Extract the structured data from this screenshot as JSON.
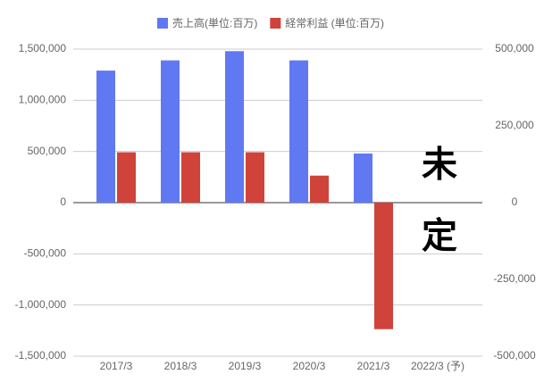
{
  "chart_data": {
    "type": "bar",
    "legend_position": "top",
    "categories": [
      "2017/3",
      "2018/3",
      "2019/3",
      "2020/3",
      "2021/3",
      "2022/3 (予)"
    ],
    "series": [
      {
        "name": "売上高(単位:百万)",
        "color": "#6079f2",
        "values": [
          1290000,
          1390000,
          1480000,
          1390000,
          480000,
          null
        ]
      },
      {
        "name": "経常利益 (単位:百万)",
        "color": "#d0433a",
        "axis": "y2",
        "values": [
          164000,
          164000,
          164000,
          88000,
          -412000,
          null
        ]
      }
    ],
    "ylim": [
      -1500000,
      1500000
    ],
    "yticks": [
      {
        "value": 1500000,
        "label": "1,500,000"
      },
      {
        "value": 1000000,
        "label": "1,000,000"
      },
      {
        "value": 500000,
        "label": "500,000"
      },
      0,
      {
        "value": -500000,
        "label": "-500,000"
      },
      {
        "value": -1000000,
        "label": "-1,000,000"
      },
      {
        "value": -1500000,
        "label": "-1,500,000"
      }
    ],
    "y2lim": [
      -500000,
      500000
    ],
    "y2ticks": [
      {
        "value": 500000,
        "label": "500,000"
      },
      {
        "value": 250000,
        "label": "250,000"
      },
      0,
      {
        "value": -250000,
        "label": "-250,000"
      },
      {
        "value": -500000,
        "label": "-500,000"
      }
    ],
    "grid": true,
    "annotations": [
      "未",
      "定"
    ]
  }
}
